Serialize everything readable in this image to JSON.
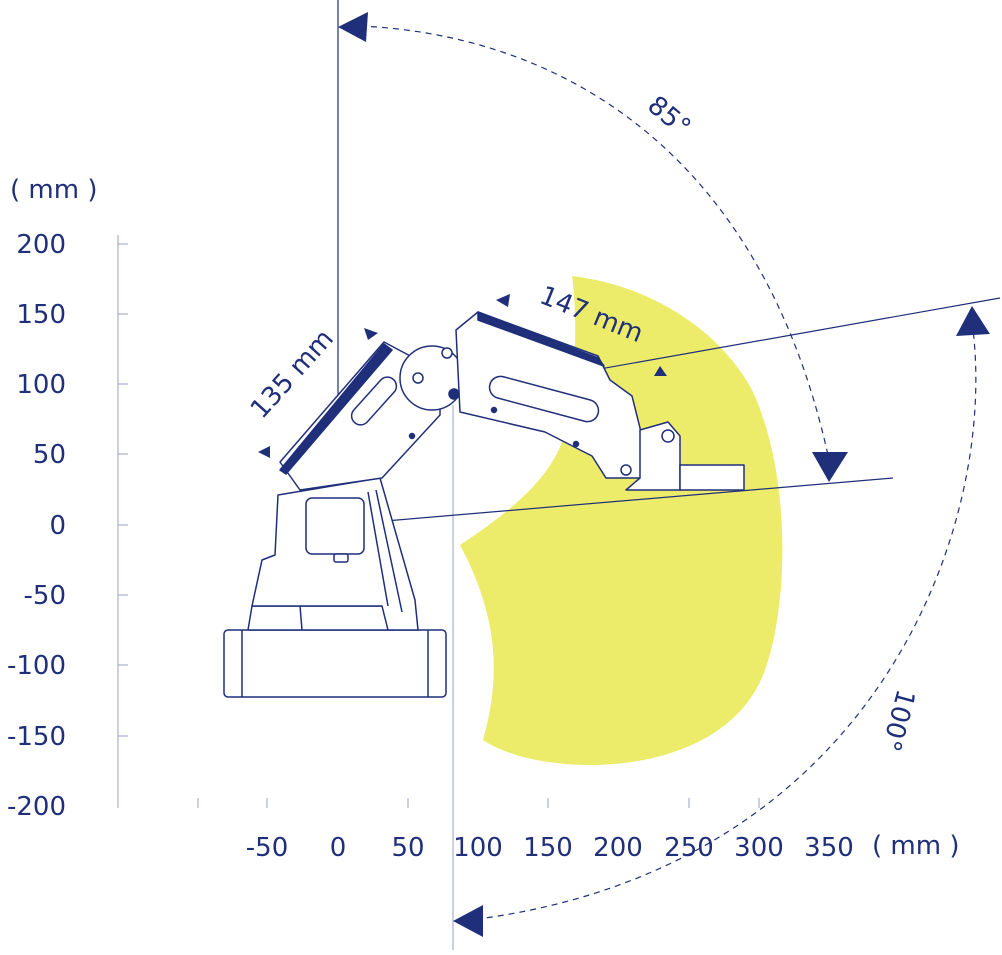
{
  "colors": {
    "primary": "#1f2f7a",
    "workspace": "#ecec6a",
    "grid": "#9aa0c0"
  },
  "axes": {
    "y_unit": "( mm )",
    "x_unit": "( mm )",
    "y_ticks": [
      "200",
      "150",
      "100",
      "50",
      "0",
      "-50",
      "-100",
      "-150",
      "-200"
    ],
    "x_ticks": [
      "-50",
      "0",
      "50",
      "100",
      "150",
      "200",
      "250",
      "300",
      "350"
    ]
  },
  "annotations": {
    "upper_arm_length": "135 mm",
    "forearm_length": "147 mm",
    "upper_angle": "85°",
    "lower_angle": "100°"
  }
}
